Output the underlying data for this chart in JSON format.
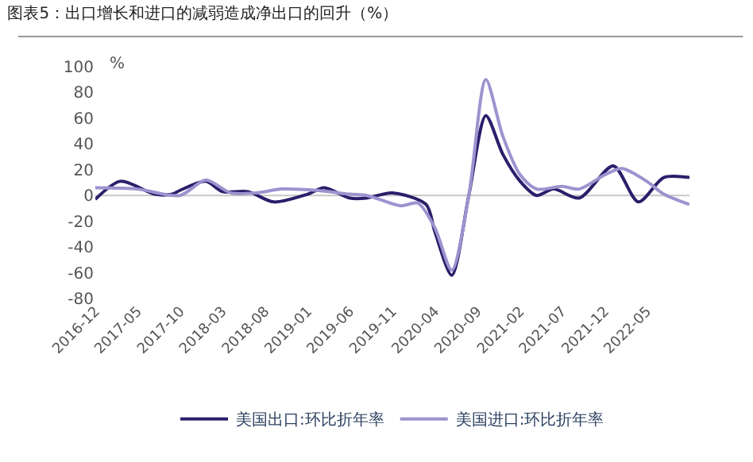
{
  "chart_data": {
    "type": "line",
    "title": "图表5：出口增长和进口的减弱造成净出口的回升（%）",
    "ylabel": "%",
    "series": [
      {
        "name": "美国出口:环比折年率",
        "color": "#2b1f6b",
        "x": [
          "2016-12",
          "2017-03",
          "2017-07",
          "2017-09",
          "2017-10",
          "2018-01",
          "2018-03",
          "2018-06",
          "2018-09",
          "2019-01",
          "2019-03",
          "2019-06",
          "2019-08",
          "2019-11",
          "2020-03",
          "2020-04",
          "2020-06",
          "2020-08",
          "2020-10",
          "2020-12",
          "2021-02",
          "2021-04",
          "2021-06",
          "2021-09",
          "2022-01",
          "2022-04",
          "2022-07",
          "2022-10"
        ],
        "values": [
          -3,
          11,
          1,
          1,
          4,
          11,
          3,
          3,
          -5,
          1,
          6,
          -2,
          -2,
          2,
          -7,
          -28,
          -62,
          0,
          62,
          32,
          11,
          0,
          5,
          -2,
          23,
          -5,
          14,
          14
        ]
      },
      {
        "name": "美国进口:环比折年率",
        "color": "#9d93cf",
        "x": [
          "2016-12",
          "2017-05",
          "2017-10",
          "2018-01",
          "2018-04",
          "2018-07",
          "2018-10",
          "2019-02",
          "2019-06",
          "2019-08",
          "2019-12",
          "2020-02",
          "2020-04",
          "2020-06",
          "2020-08",
          "2020-10",
          "2020-12",
          "2021-02",
          "2021-04",
          "2021-07",
          "2021-09",
          "2021-12",
          "2022-02",
          "2022-05",
          "2022-07",
          "2022-10"
        ],
        "values": [
          6,
          5,
          0,
          12,
          2,
          2,
          5,
          4,
          1,
          0,
          -8,
          -6,
          -25,
          -58,
          0,
          90,
          46,
          16,
          5,
          7,
          5,
          16,
          21,
          11,
          1,
          -7
        ]
      }
    ],
    "xlim": [
      "2016-12",
      "2022-10"
    ],
    "xticks": [
      "2016-12",
      "2017-05",
      "2017-10",
      "2018-03",
      "2018-08",
      "2019-01",
      "2019-06",
      "2019-11",
      "2020-04",
      "2020-09",
      "2021-02",
      "2021-07",
      "2021-12",
      "2022-05"
    ],
    "ylim": [
      -80,
      100
    ],
    "yticks": [
      -80,
      -60,
      -40,
      -20,
      0,
      20,
      40,
      60,
      80,
      100
    ],
    "grid": false,
    "legend": "bottom",
    "marker": "none",
    "line_style": "solid",
    "ref_lines": [
      {
        "axis": "y",
        "value": 0,
        "color": "#c8c8c8"
      }
    ]
  }
}
